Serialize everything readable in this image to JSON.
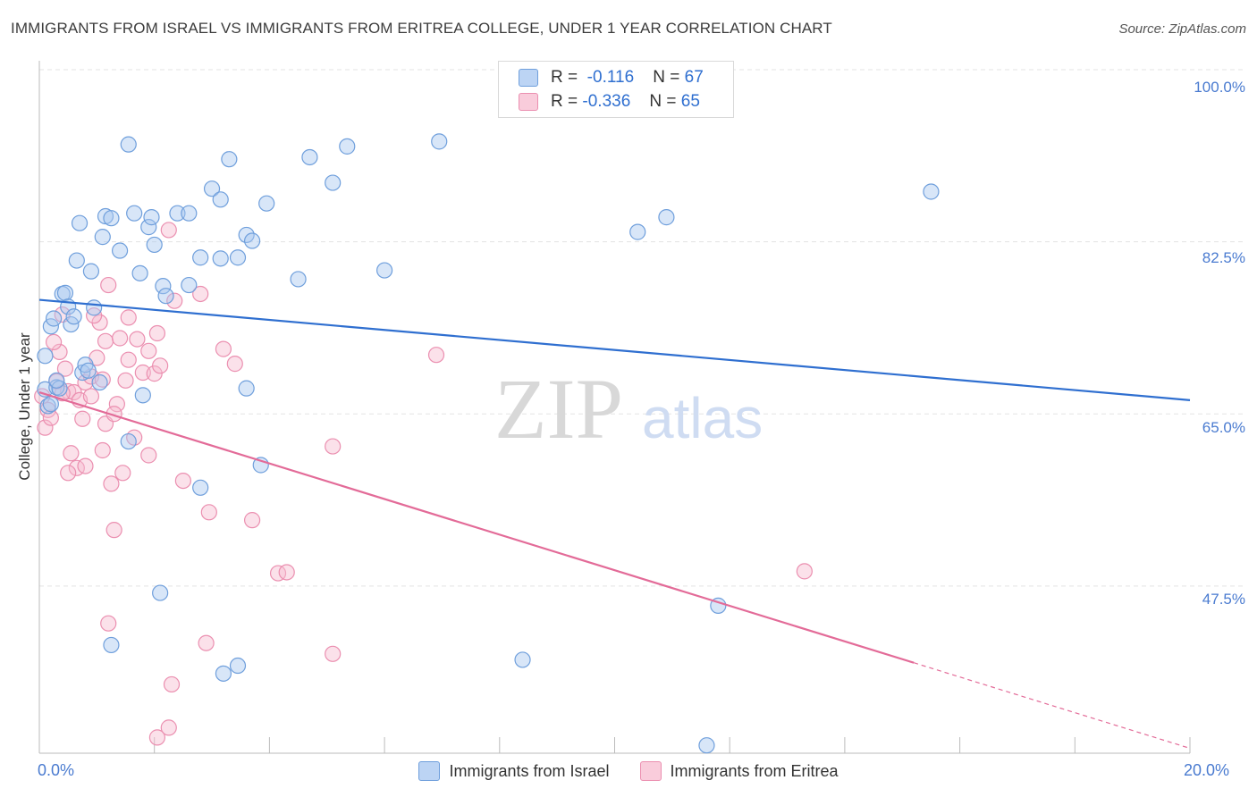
{
  "title": "IMMIGRANTS FROM ISRAEL VS IMMIGRANTS FROM ERITREA COLLEGE, UNDER 1 YEAR CORRELATION CHART",
  "source": "Source: ZipAtlas.com",
  "watermark": {
    "zip": "ZIP",
    "atlas": "atlas"
  },
  "stats": {
    "israel": {
      "r_label": "R =",
      "r_value": "-0.116",
      "n_label": "N =",
      "n_value": "67"
    },
    "eritrea": {
      "r_label": "R =",
      "r_value": "-0.336",
      "n_label": "N =",
      "n_value": "65"
    }
  },
  "colors": {
    "israel_fill": "#a9c8f0",
    "israel_stroke": "#6f9fdc",
    "israel_line": "#2f6fd0",
    "eritrea_fill": "#f6bdd0",
    "eritrea_stroke": "#eb8fb0",
    "eritrea_line": "#e36b98",
    "axis_label": "#4a7bd0"
  },
  "chart_data": {
    "type": "scatter",
    "title": "IMMIGRANTS FROM ISRAEL VS IMMIGRANTS FROM ERITREA COLLEGE, UNDER 1 YEAR CORRELATION CHART",
    "xlabel": "",
    "ylabel": "College, Under 1 year",
    "xlim": [
      0,
      20
    ],
    "ylim": [
      30.5,
      100
    ],
    "x_tick_labels": [
      "0.0%",
      "20.0%"
    ],
    "y_ticks": [
      47.5,
      65.0,
      82.5,
      100.0
    ],
    "y_tick_labels": [
      "47.5%",
      "65.0%",
      "82.5%",
      "100.0%"
    ],
    "legend": [
      "Immigrants from Israel",
      "Immigrants from Eritrea"
    ],
    "series": [
      {
        "name": "Immigrants from Israel",
        "trend": {
          "x": [
            0,
            20
          ],
          "y": [
            76.6,
            66.4
          ]
        },
        "points": [
          [
            0.1,
            70.9
          ],
          [
            0.1,
            67.5
          ],
          [
            0.15,
            65.8
          ],
          [
            0.2,
            73.9
          ],
          [
            0.25,
            74.7
          ],
          [
            0.3,
            67.7
          ],
          [
            0.4,
            77.2
          ],
          [
            0.45,
            77.3
          ],
          [
            0.5,
            75.9
          ],
          [
            0.55,
            74.1
          ],
          [
            0.65,
            80.6
          ],
          [
            0.7,
            84.4
          ],
          [
            0.75,
            69.2
          ],
          [
            0.8,
            70.0
          ],
          [
            0.9,
            79.5
          ],
          [
            1.1,
            83.0
          ],
          [
            1.15,
            85.1
          ],
          [
            1.25,
            84.9
          ],
          [
            1.4,
            81.6
          ],
          [
            1.55,
            92.4
          ],
          [
            1.65,
            85.4
          ],
          [
            1.75,
            79.3
          ],
          [
            1.9,
            84.0
          ],
          [
            1.95,
            85.0
          ],
          [
            2.0,
            82.2
          ],
          [
            2.15,
            78.0
          ],
          [
            2.4,
            85.4
          ],
          [
            2.6,
            85.4
          ],
          [
            2.8,
            80.9
          ],
          [
            3.0,
            87.9
          ],
          [
            3.15,
            80.8
          ],
          [
            3.3,
            90.9
          ],
          [
            3.45,
            80.9
          ],
          [
            3.6,
            83.2
          ],
          [
            3.7,
            82.6
          ],
          [
            3.95,
            86.4
          ],
          [
            4.5,
            78.7
          ],
          [
            4.7,
            91.1
          ],
          [
            5.1,
            88.5
          ],
          [
            5.35,
            92.2
          ],
          [
            6.0,
            79.6
          ],
          [
            6.95,
            92.7
          ],
          [
            10.4,
            83.5
          ],
          [
            10.9,
            85.0
          ],
          [
            15.5,
            87.6
          ],
          [
            0.35,
            67.6
          ],
          [
            0.6,
            74.9
          ],
          [
            0.85,
            69.4
          ],
          [
            1.05,
            68.2
          ],
          [
            1.55,
            62.2
          ],
          [
            1.8,
            66.9
          ],
          [
            2.6,
            78.1
          ],
          [
            2.8,
            57.5
          ],
          [
            3.15,
            86.8
          ],
          [
            3.6,
            67.6
          ],
          [
            3.85,
            59.8
          ],
          [
            2.1,
            46.8
          ],
          [
            1.25,
            41.5
          ],
          [
            3.2,
            38.6
          ],
          [
            3.45,
            39.4
          ],
          [
            8.4,
            40.0
          ],
          [
            11.8,
            45.5
          ],
          [
            11.6,
            31.3
          ],
          [
            0.2,
            66.0
          ],
          [
            0.3,
            68.4
          ],
          [
            0.95,
            75.8
          ],
          [
            2.2,
            77.0
          ]
        ]
      },
      {
        "name": "Immigrants from Eritrea",
        "trend": {
          "x": [
            0,
            15.2
          ],
          "y": [
            67.2,
            39.7
          ]
        },
        "trend_dashed": {
          "x": [
            15.2,
            20
          ],
          "y": [
            39.7,
            31.0
          ]
        },
        "points": [
          [
            0.05,
            66.8
          ],
          [
            0.1,
            63.6
          ],
          [
            0.15,
            65.4
          ],
          [
            0.2,
            64.6
          ],
          [
            0.3,
            68.3
          ],
          [
            0.35,
            71.3
          ],
          [
            0.4,
            75.1
          ],
          [
            0.45,
            69.6
          ],
          [
            0.5,
            67.3
          ],
          [
            0.6,
            67.2
          ],
          [
            0.7,
            66.4
          ],
          [
            0.75,
            64.5
          ],
          [
            0.8,
            68.2
          ],
          [
            0.9,
            68.8
          ],
          [
            1.0,
            70.7
          ],
          [
            1.05,
            74.3
          ],
          [
            1.1,
            68.5
          ],
          [
            1.15,
            72.4
          ],
          [
            1.2,
            78.1
          ],
          [
            1.35,
            66.0
          ],
          [
            1.4,
            72.7
          ],
          [
            1.5,
            68.4
          ],
          [
            1.55,
            70.5
          ],
          [
            1.65,
            62.6
          ],
          [
            1.7,
            72.6
          ],
          [
            1.8,
            69.2
          ],
          [
            1.9,
            71.4
          ],
          [
            2.0,
            69.1
          ],
          [
            2.05,
            73.2
          ],
          [
            2.1,
            69.9
          ],
          [
            2.25,
            83.7
          ],
          [
            2.35,
            76.5
          ],
          [
            2.8,
            77.2
          ],
          [
            2.95,
            55.0
          ],
          [
            3.2,
            71.6
          ],
          [
            3.4,
            70.1
          ],
          [
            3.7,
            54.2
          ],
          [
            4.15,
            48.8
          ],
          [
            4.3,
            48.9
          ],
          [
            5.1,
            61.7
          ],
          [
            6.9,
            71.0
          ],
          [
            13.3,
            49.0
          ],
          [
            0.25,
            72.3
          ],
          [
            0.55,
            61.0
          ],
          [
            0.65,
            59.5
          ],
          [
            0.8,
            59.7
          ],
          [
            1.1,
            61.3
          ],
          [
            1.25,
            57.9
          ],
          [
            1.45,
            59.0
          ],
          [
            1.9,
            60.8
          ],
          [
            2.5,
            58.2
          ],
          [
            1.3,
            53.2
          ],
          [
            2.9,
            41.7
          ],
          [
            1.2,
            43.7
          ],
          [
            2.3,
            37.5
          ],
          [
            2.25,
            33.1
          ],
          [
            2.05,
            32.1
          ],
          [
            5.1,
            40.6
          ],
          [
            0.4,
            67.1
          ],
          [
            0.95,
            75.0
          ],
          [
            1.15,
            64.0
          ],
          [
            1.3,
            65.0
          ],
          [
            0.9,
            66.8
          ],
          [
            0.5,
            59.0
          ],
          [
            1.55,
            74.8
          ]
        ]
      }
    ]
  }
}
